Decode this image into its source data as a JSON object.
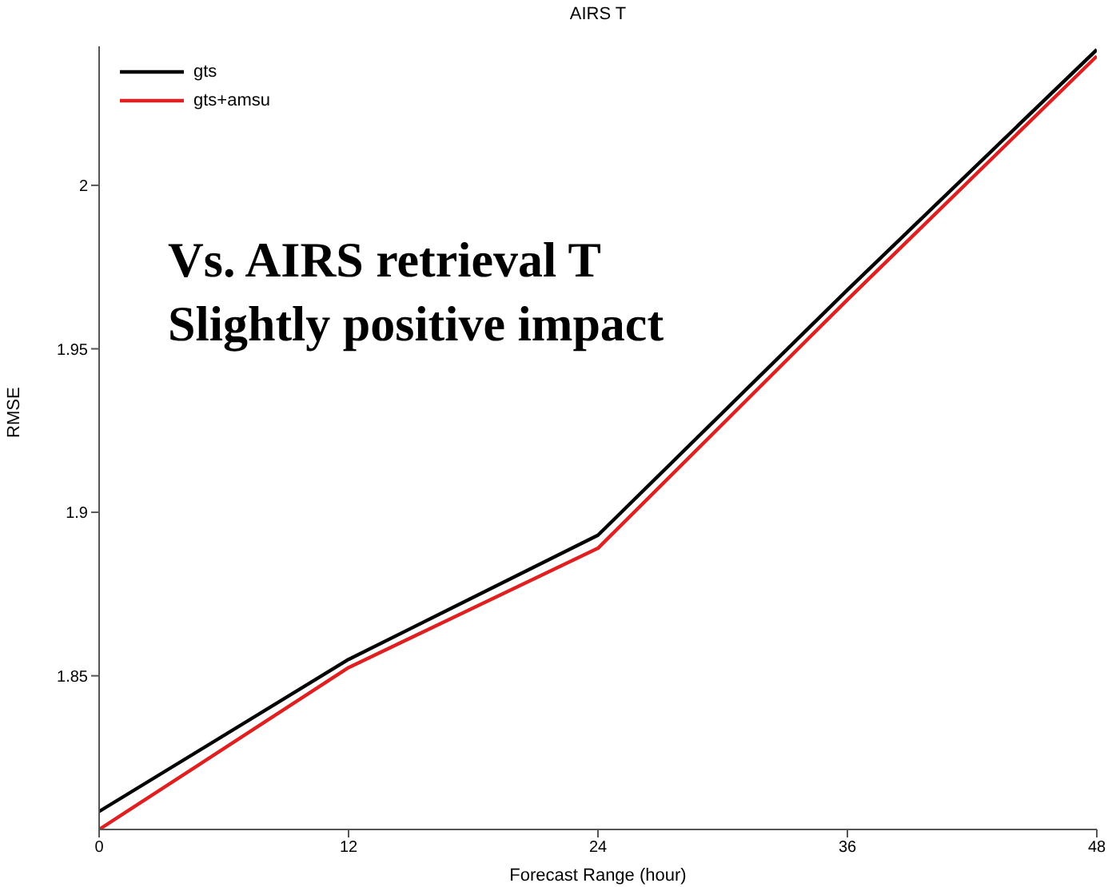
{
  "chart_data": {
    "type": "line",
    "title": "AIRS T",
    "xlabel": "Forecast Range (hour)",
    "ylabel": "RMSE",
    "x": [
      0,
      12,
      24,
      36,
      48
    ],
    "series": [
      {
        "name": "gts",
        "color": "#000000",
        "values": [
          1.8085,
          1.855,
          1.893,
          1.968,
          2.0415
        ]
      },
      {
        "name": "gts+amsu",
        "color": "#e02020",
        "values": [
          1.803,
          1.8525,
          1.889,
          1.965,
          2.0395
        ]
      }
    ],
    "xlim": [
      0,
      48
    ],
    "xticks": [
      0,
      12,
      24,
      36,
      48
    ],
    "ylim": [
      1.803,
      2.0425
    ],
    "yticks": [
      1.85,
      1.9,
      1.95,
      2
    ],
    "legend": "top left",
    "grid": false,
    "marker": "none",
    "line_style": "solid",
    "annotations": [
      "Vs. AIRS retrieval T",
      "Slightly positive impact"
    ]
  }
}
